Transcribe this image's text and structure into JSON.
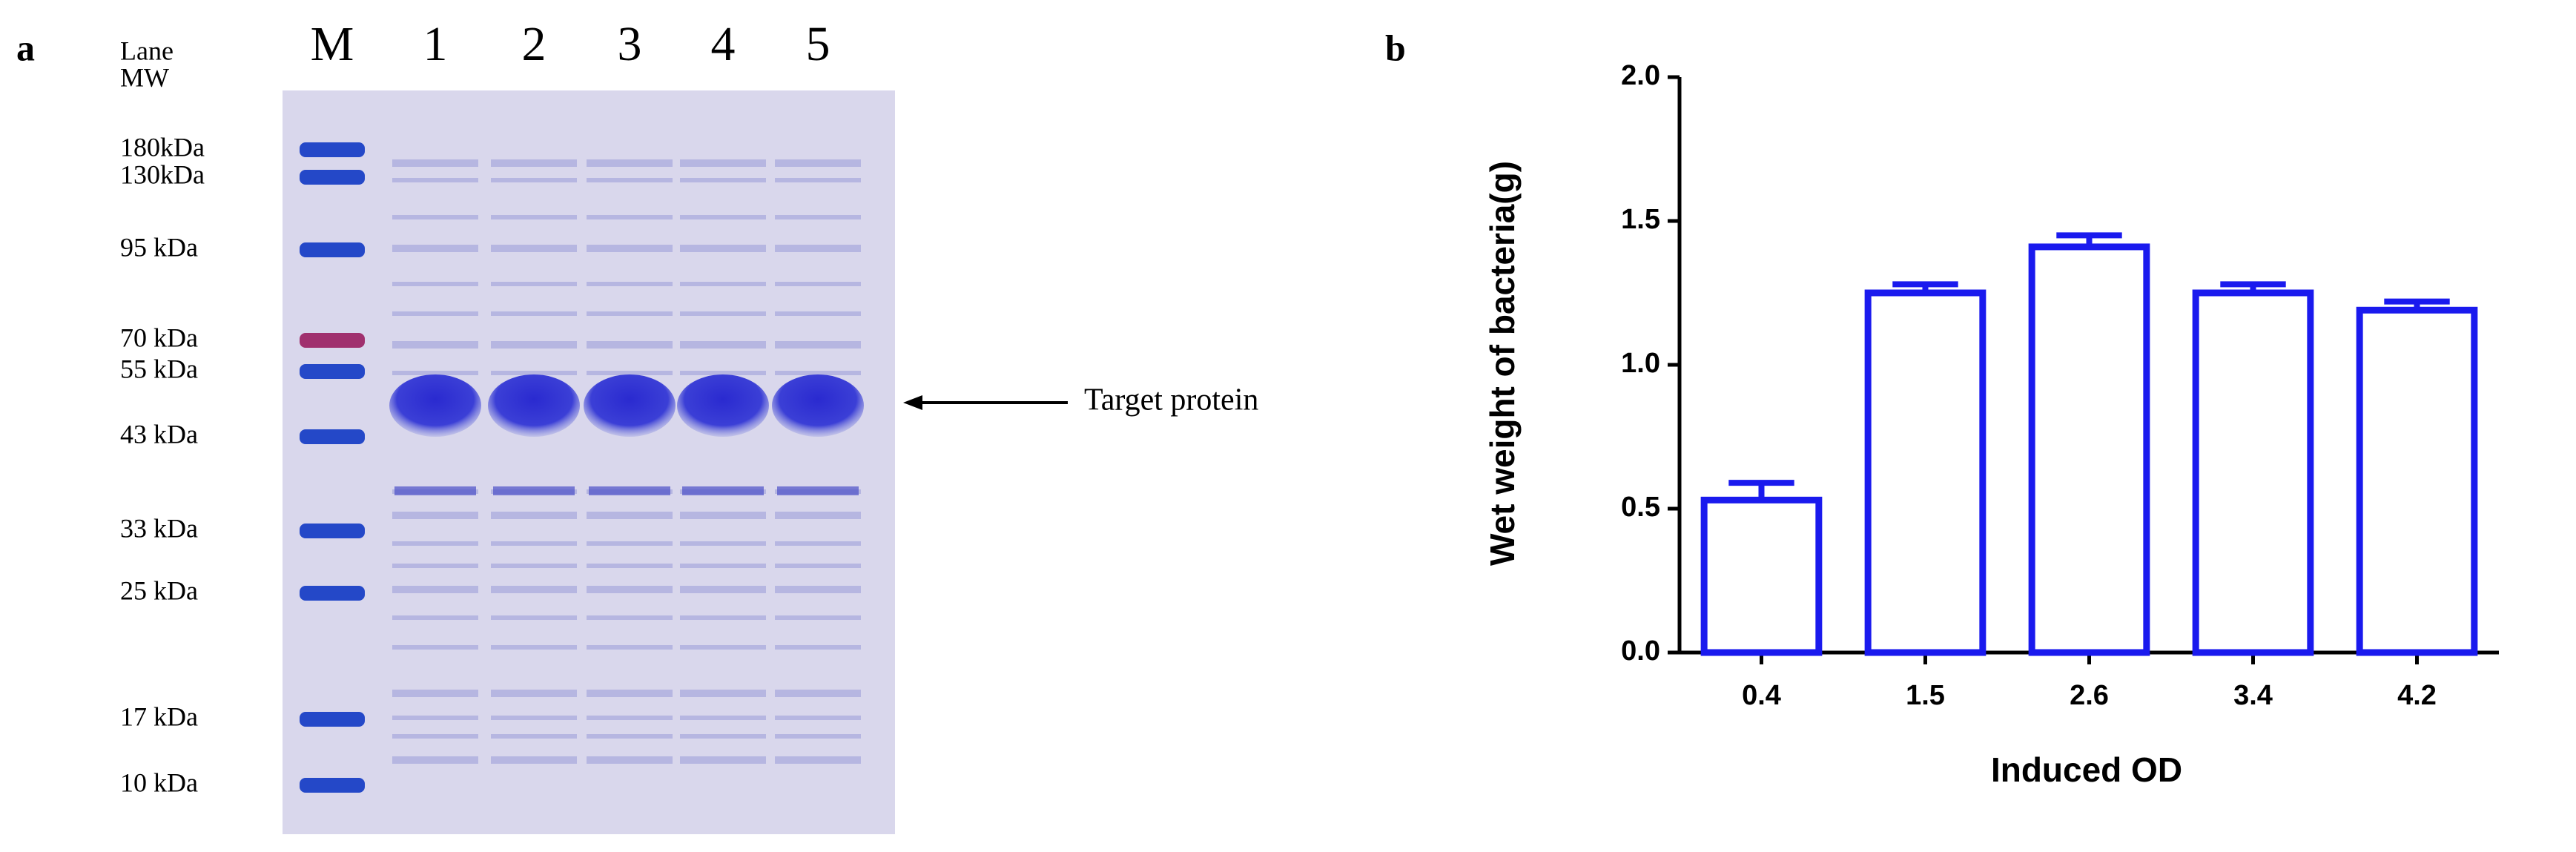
{
  "gel": {
    "panel_label": "a",
    "lane_header": "Lane",
    "mw_header": "MW",
    "lanes": [
      "M",
      "1",
      "2",
      "3",
      "4",
      "5"
    ],
    "markers": [
      "180kDa",
      "130kDa",
      "95 kDa",
      "70 kDa",
      "55 kDa",
      "43 kDa",
      "33 kDa",
      "25 kDa",
      "17 kDa",
      "10 kDa"
    ],
    "annotation": "Target protein"
  },
  "chart_data": {
    "type": "bar",
    "panel_label": "b",
    "x_label": "Induced OD",
    "y_label": "Wet weight of bacteria(g)",
    "categories": [
      "0.4",
      "1.5",
      "2.6",
      "3.4",
      "4.2"
    ],
    "values": [
      0.53,
      1.25,
      1.41,
      1.25,
      1.19
    ],
    "errors": [
      0.06,
      0.03,
      0.04,
      0.03,
      0.03
    ],
    "color": "#1a1aee",
    "ylim": [
      0,
      2
    ],
    "yticks": [
      {
        "value": 0,
        "label": "0.0"
      },
      0.5,
      {
        "value": 1,
        "label": "1.0"
      },
      1.5,
      {
        "value": 2,
        "label": "2.0"
      }
    ]
  }
}
